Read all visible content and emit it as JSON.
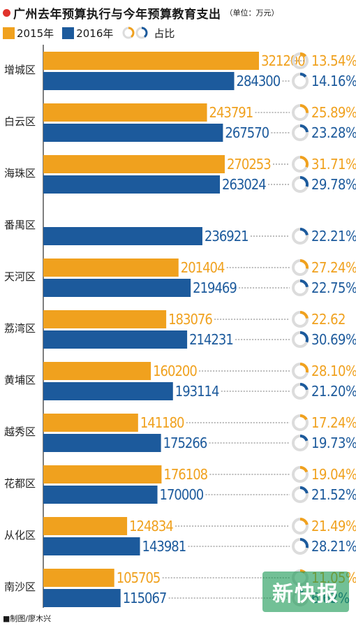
{
  "title": "广州去年预算执行与今年预算教育支出",
  "unit": "（单位：万元）",
  "legend": {
    "series_2015": "2015年",
    "series_2016": "2016年",
    "ratio": "占比"
  },
  "colors": {
    "s2015": "#f0a11e",
    "s2016": "#1c5a9c",
    "ring_track": "#dcdcdc",
    "title_dot": "#e0332c"
  },
  "credit": "■制图/廖木兴",
  "watermark": "新快报",
  "chart_data": {
    "type": "bar",
    "orientation": "horizontal",
    "title": "广州去年预算执行与今年预算教育支出",
    "unit": "万元",
    "grid": false,
    "legend_position": "top-left",
    "categories": [
      "增城区",
      "白云区",
      "海珠区",
      "番禺区",
      "天河区",
      "荔湾区",
      "黄埔区",
      "越秀区",
      "花都区",
      "从化区",
      "南沙区"
    ],
    "series": [
      {
        "name": "2015年",
        "values": [
          321200,
          243791,
          270253,
          null,
          201404,
          183076,
          160200,
          141180,
          176108,
          124834,
          105705
        ],
        "labels": [
          "321200",
          "243791",
          "270253",
          "",
          "201404",
          "183076",
          "160200",
          "141180",
          "176108",
          "124834",
          "105705"
        ],
        "share": [
          13.54,
          25.89,
          31.71,
          null,
          27.24,
          22.62,
          28.1,
          17.24,
          19.04,
          21.49,
          11.05
        ],
        "share_labels": [
          "13.54%",
          "25.89%",
          "31.71%",
          "",
          "27.24%",
          "22.62",
          "28.10%",
          "17.24%",
          "19.04%",
          "21.49%",
          "11.05%"
        ]
      },
      {
        "name": "2016年",
        "values": [
          284300,
          267570,
          263024,
          236921,
          219469,
          214231,
          193114,
          175266,
          170000,
          143981,
          115067
        ],
        "labels": [
          "284300",
          "267570",
          "263024",
          "236921",
          "219469",
          "214231",
          "193114",
          "175266",
          "170000",
          "143981",
          "115067"
        ],
        "share": [
          14.16,
          23.28,
          29.78,
          22.21,
          22.75,
          30.69,
          21.2,
          19.73,
          21.52,
          28.21,
          6.62
        ],
        "share_labels": [
          "14.16%",
          "23.28%",
          "29.78%",
          "22.21%",
          "22.75%",
          "30.69%",
          "21.20%",
          "19.73%",
          "21.52%",
          "28.21%",
          "6.62%"
        ]
      }
    ]
  }
}
